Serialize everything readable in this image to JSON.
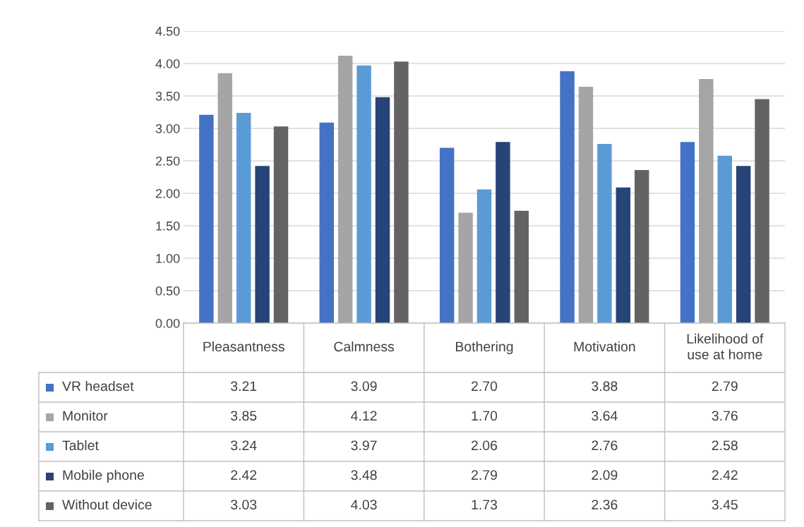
{
  "chart_data": {
    "type": "bar",
    "categories": [
      "Pleasantness",
      "Calmness",
      "Bothering",
      "Motivation",
      "Likelihood of\nuse at home"
    ],
    "series": [
      {
        "name": "VR headset",
        "color": "#4472c4",
        "values": [
          3.21,
          3.09,
          2.7,
          3.88,
          2.79
        ],
        "value_labels": [
          "3.21",
          "3.09",
          "2.70",
          "3.88",
          "2.79"
        ]
      },
      {
        "name": "Monitor",
        "color": "#a5a5a5",
        "values": [
          3.85,
          4.12,
          1.7,
          3.64,
          3.76
        ],
        "value_labels": [
          "3.85",
          "4.12",
          "1.70",
          "3.64",
          "3.76"
        ]
      },
      {
        "name": "Tablet",
        "color": "#5b9bd5",
        "values": [
          3.24,
          3.97,
          2.06,
          2.76,
          2.58
        ],
        "value_labels": [
          "3.24",
          "3.97",
          "2.06",
          "2.76",
          "2.58"
        ]
      },
      {
        "name": "Mobile phone",
        "color": "#264478",
        "values": [
          2.42,
          3.48,
          2.79,
          2.09,
          2.42
        ],
        "value_labels": [
          "2.42",
          "3.48",
          "2.79",
          "2.09",
          "2.42"
        ]
      },
      {
        "name": "Without device",
        "color": "#636363",
        "values": [
          3.03,
          4.03,
          1.73,
          2.36,
          3.45
        ],
        "value_labels": [
          "3.03",
          "4.03",
          "1.73",
          "2.36",
          "3.45"
        ]
      }
    ],
    "ylim": [
      0,
      4.5
    ],
    "yticks": [
      {
        "value": 0,
        "label": "0.00"
      },
      {
        "value": 0.5,
        "label": "0.50"
      },
      {
        "value": 1,
        "label": "1.00"
      },
      {
        "value": 1.5,
        "label": "1.50"
      },
      {
        "value": 2,
        "label": "2.00"
      },
      {
        "value": 2.5,
        "label": "2.50"
      },
      {
        "value": 3,
        "label": "3.00"
      },
      {
        "value": 3.5,
        "label": "3.50"
      },
      {
        "value": 4,
        "label": "4.00"
      },
      {
        "value": 4.5,
        "label": "4.50"
      }
    ],
    "grid": "y",
    "legend": "bottom"
  }
}
